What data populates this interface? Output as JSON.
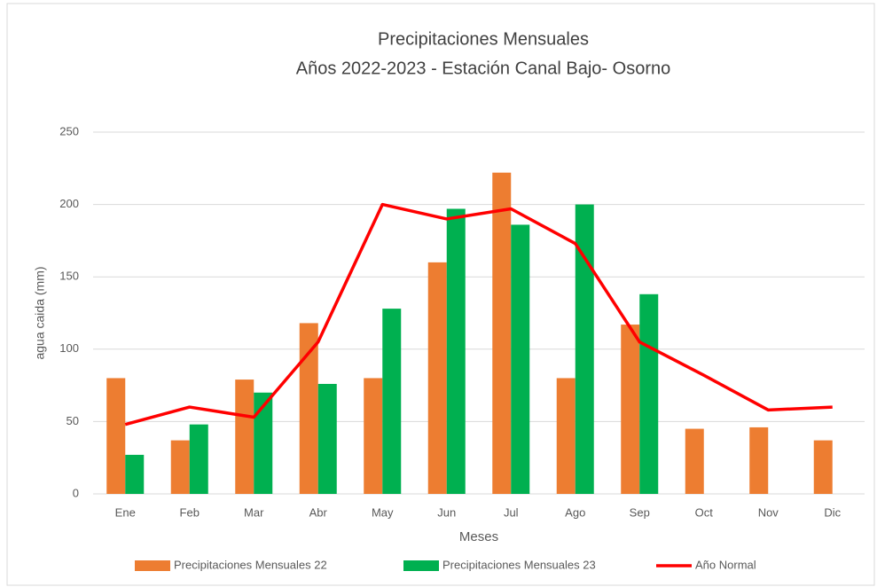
{
  "chart_data": {
    "type": "bar_line",
    "title": "Precipitaciones Mensuales",
    "subtitle": "Años 2022-2023 - Estación Canal Bajo- Osorno",
    "x_label": "Meses",
    "y_label": "agua caida (mm)",
    "categories": [
      "Ene",
      "Feb",
      "Mar",
      "Abr",
      "May",
      "Jun",
      "Jul",
      "Ago",
      "Sep",
      "Oct",
      "Nov",
      "Dic"
    ],
    "series": [
      {
        "name": "Precipitaciones Mensuales 22",
        "type": "bar",
        "color": "#ed7d31",
        "values": [
          80,
          37,
          79,
          118,
          80,
          160,
          222,
          80,
          117,
          45,
          46,
          37
        ]
      },
      {
        "name": "Precipitaciones Mensuales 23",
        "type": "bar",
        "color": "#00b050",
        "values": [
          27,
          48,
          70,
          76,
          128,
          197,
          186,
          200,
          138,
          null,
          null,
          null
        ]
      },
      {
        "name": "Año Normal",
        "type": "line",
        "color": "#ff0000",
        "values": [
          48,
          60,
          53,
          105,
          200,
          190,
          197,
          173,
          105,
          82,
          58,
          60
        ]
      }
    ],
    "ylim": [
      0,
      250
    ],
    "yticks": [
      0,
      50,
      100,
      150,
      200,
      250
    ],
    "grid": true,
    "legend": "bottom"
  }
}
